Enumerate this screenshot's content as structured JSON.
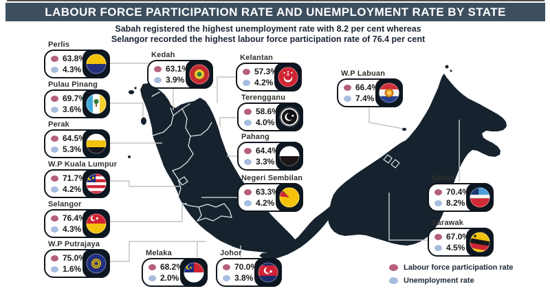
{
  "header": {
    "title": "LABOUR FORCE PARTICIPATION RATE AND UNEMPLOYMENT RATE BY STATE"
  },
  "subtitle": {
    "line1": "Sabah registered the highest unemployment rate with 8.2 per cent whereas",
    "line2": "Selangor recorded the highest labour force participation rate of 76.4 per cent"
  },
  "colors": {
    "header_bg": "#3d4f5f",
    "map": "#16222d",
    "lfpr_dot": "#b5607a",
    "unemployment_dot": "#a7bddf"
  },
  "legend": {
    "items": [
      {
        "label": "Labour force participation rate",
        "color": "#b5607a"
      },
      {
        "label": "Unemployment rate",
        "color": "#a7bddf"
      }
    ]
  },
  "states": [
    {
      "id": "perlis",
      "name": "Perlis",
      "lfpr": "63.8%",
      "unemployment": "4.3%"
    },
    {
      "id": "pulau-pinang",
      "name": "Pulau Pinang",
      "lfpr": "69.7%",
      "unemployment": "3.6%"
    },
    {
      "id": "perak",
      "name": "Perak",
      "lfpr": "64.5%",
      "unemployment": "5.3%"
    },
    {
      "id": "kuala-lumpur",
      "name": "W.P Kuala Lumpur",
      "lfpr": "71.7%",
      "unemployment": "4.2%"
    },
    {
      "id": "selangor",
      "name": "Selangor",
      "lfpr": "76.4%",
      "unemployment": "4.3%"
    },
    {
      "id": "putrajaya",
      "name": "W.P Putrajaya",
      "lfpr": "75.0%",
      "unemployment": "1.6%"
    },
    {
      "id": "kedah",
      "name": "Kedah",
      "lfpr": "63.1%",
      "unemployment": "3.9%"
    },
    {
      "id": "kelantan",
      "name": "Kelantan",
      "lfpr": "57.3%",
      "unemployment": "4.2%"
    },
    {
      "id": "terengganu",
      "name": "Terengganu",
      "lfpr": "58.6%",
      "unemployment": "4.0%"
    },
    {
      "id": "pahang",
      "name": "Pahang",
      "lfpr": "64.4%",
      "unemployment": "3.3%"
    },
    {
      "id": "negeri-sembilan",
      "name": "Negeri Sembilan",
      "lfpr": "63.3%",
      "unemployment": "4.2%"
    },
    {
      "id": "melaka",
      "name": "Melaka",
      "lfpr": "68.2%",
      "unemployment": "2.0%"
    },
    {
      "id": "johor",
      "name": "Johor",
      "lfpr": "70.0%",
      "unemployment": "3.8%"
    },
    {
      "id": "labuan",
      "name": "W.P Labuan",
      "lfpr": "66.4%",
      "unemployment": "7.4%"
    },
    {
      "id": "sabah",
      "name": "Sabah",
      "lfpr": "70.4%",
      "unemployment": "8.2%"
    },
    {
      "id": "sarawak",
      "name": "Sarawak",
      "lfpr": "67.0%",
      "unemployment": "4.5%"
    }
  ],
  "chart_data": {
    "type": "map",
    "region": "Malaysia",
    "title": "Labour force participation rate and unemployment rate by state",
    "unit": "%",
    "series": [
      "Labour force participation rate",
      "Unemployment rate"
    ],
    "highlights": {
      "highest_unemployment": {
        "state": "Sabah",
        "value": 8.2
      },
      "highest_lfpr": {
        "state": "Selangor",
        "value": 76.4
      }
    },
    "states": [
      {
        "name": "Perlis",
        "lfpr": 63.8,
        "unemployment": 4.3
      },
      {
        "name": "Pulau Pinang",
        "lfpr": 69.7,
        "unemployment": 3.6
      },
      {
        "name": "Perak",
        "lfpr": 64.5,
        "unemployment": 5.3
      },
      {
        "name": "W.P Kuala Lumpur",
        "lfpr": 71.7,
        "unemployment": 4.2
      },
      {
        "name": "Selangor",
        "lfpr": 76.4,
        "unemployment": 4.3
      },
      {
        "name": "W.P Putrajaya",
        "lfpr": 75.0,
        "unemployment": 1.6
      },
      {
        "name": "Kedah",
        "lfpr": 63.1,
        "unemployment": 3.9
      },
      {
        "name": "Kelantan",
        "lfpr": 57.3,
        "unemployment": 4.2
      },
      {
        "name": "Terengganu",
        "lfpr": 58.6,
        "unemployment": 4.0
      },
      {
        "name": "Pahang",
        "lfpr": 64.4,
        "unemployment": 3.3
      },
      {
        "name": "Negeri Sembilan",
        "lfpr": 63.3,
        "unemployment": 4.2
      },
      {
        "name": "Melaka",
        "lfpr": 68.2,
        "unemployment": 2.0
      },
      {
        "name": "Johor",
        "lfpr": 70.0,
        "unemployment": 3.8
      },
      {
        "name": "W.P Labuan",
        "lfpr": 66.4,
        "unemployment": 7.4
      },
      {
        "name": "Sabah",
        "lfpr": 70.4,
        "unemployment": 8.2
      },
      {
        "name": "Sarawak",
        "lfpr": 67.0,
        "unemployment": 4.5
      }
    ]
  }
}
